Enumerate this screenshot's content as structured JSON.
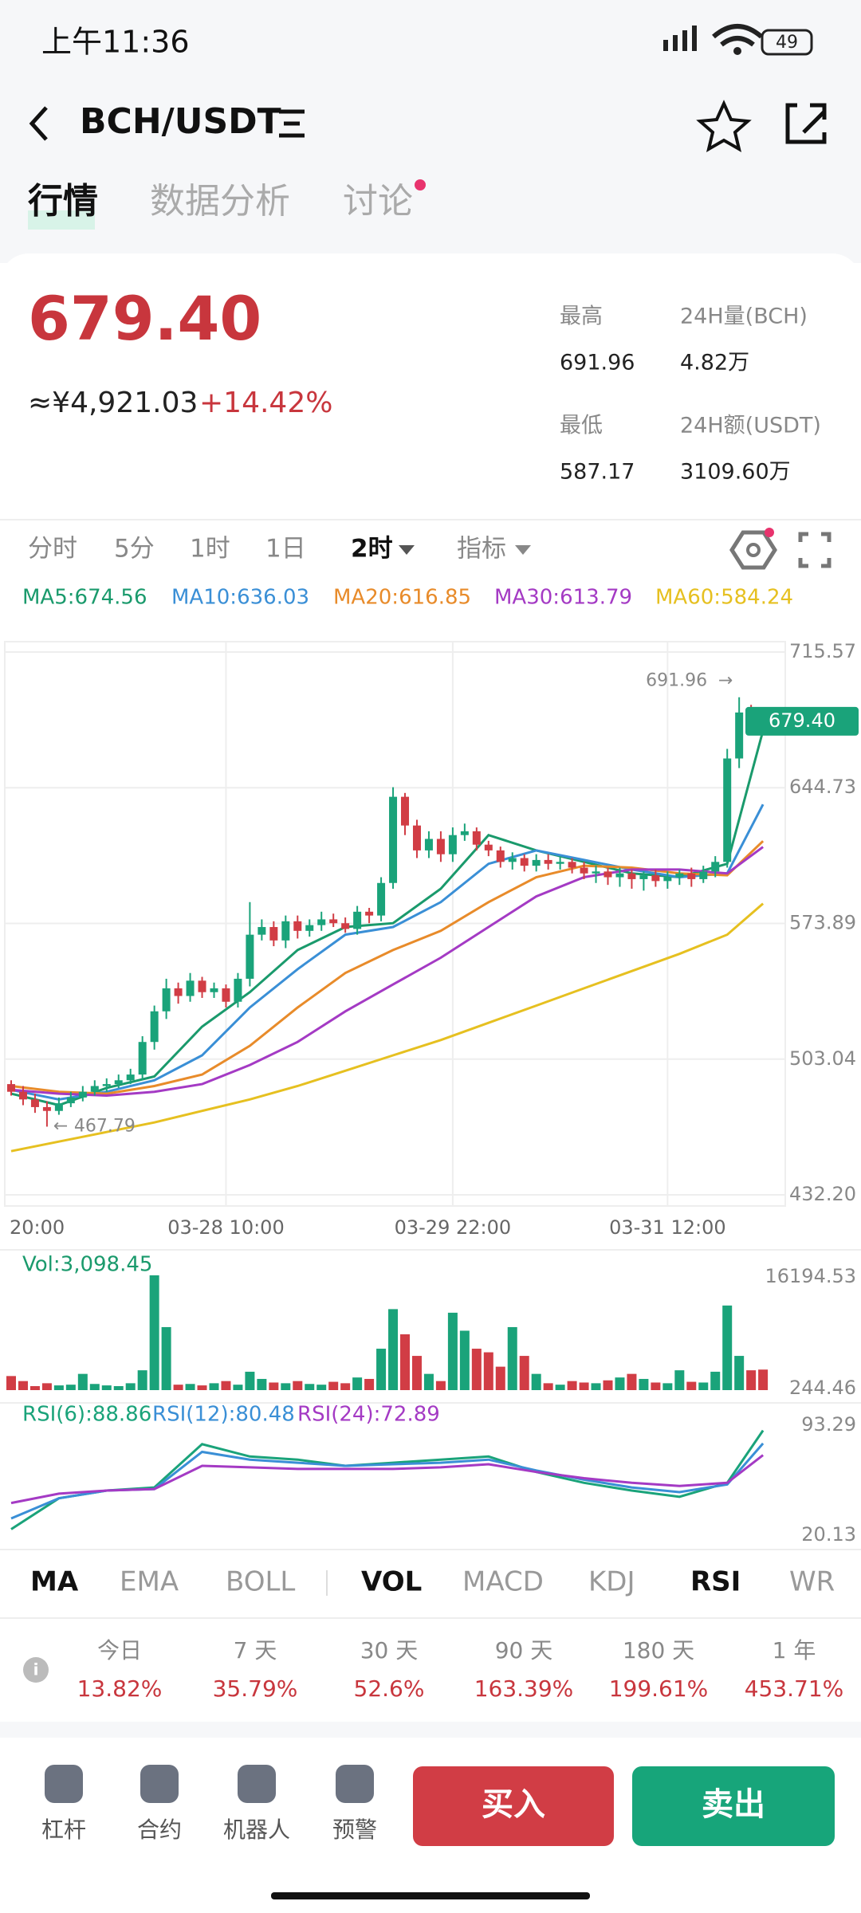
{
  "status_bar": {
    "time": "上午11:36",
    "battery": "49"
  },
  "header": {
    "pair": "BCH/USDT"
  },
  "tabs": [
    "行情",
    "数据分析",
    "讨论"
  ],
  "ticker": {
    "price": "679.40",
    "cny": "≈¥4,921.03",
    "change": "+14.42%",
    "stats": [
      {
        "label": "最高",
        "value": "691.96"
      },
      {
        "label": "24H量(BCH)",
        "value": "4.82万"
      },
      {
        "label": "最低",
        "value": "587.17"
      },
      {
        "label": "24H额(USDT)",
        "value": "3109.60万"
      }
    ]
  },
  "intervals": [
    "分时",
    "5分",
    "1时",
    "1日",
    "2时",
    "指标"
  ],
  "chart_data": [
    {
      "type": "candlestick",
      "up_color": "#1aa37a",
      "down_color": "#d13d45",
      "categories": [
        "20:00",
        null,
        null,
        null,
        null,
        null,
        null,
        null,
        null,
        null,
        null,
        null,
        null,
        null,
        null,
        null,
        null,
        null,
        "03-28 10:00",
        null,
        null,
        null,
        null,
        null,
        null,
        null,
        null,
        null,
        null,
        null,
        null,
        null,
        null,
        null,
        null,
        null,
        null,
        "03-29 22:00",
        null,
        null,
        null,
        null,
        null,
        null,
        null,
        null,
        null,
        null,
        null,
        null,
        null,
        null,
        null,
        null,
        null,
        "03-31 12:00",
        null,
        null,
        null,
        null,
        null,
        null,
        null,
        null
      ],
      "open": [
        490,
        486,
        482,
        478,
        476,
        480,
        483,
        486,
        489,
        490,
        492,
        495,
        512,
        528,
        540,
        536,
        544,
        538,
        540,
        533,
        545,
        568,
        572,
        565,
        575,
        570,
        573,
        576,
        574,
        571,
        580,
        578,
        595,
        640,
        625,
        612,
        618,
        610,
        620,
        622,
        615,
        612,
        606,
        608,
        604,
        607,
        605,
        606,
        603,
        600,
        601,
        598,
        600,
        597,
        599,
        596,
        598,
        600,
        597,
        601,
        606,
        660,
        684,
        680
      ],
      "high": [
        492,
        489,
        485,
        481,
        483,
        486,
        489,
        492,
        493,
        495,
        498,
        515,
        531,
        545,
        543,
        548,
        546,
        543,
        542,
        548,
        585,
        576,
        575,
        578,
        578,
        576,
        580,
        579,
        577,
        583,
        582,
        598,
        645,
        642,
        628,
        622,
        622,
        624,
        626,
        624,
        617,
        614,
        611,
        610,
        610,
        610,
        609,
        608,
        606,
        604,
        603,
        603,
        602,
        601,
        602,
        601,
        602,
        603,
        604,
        609,
        665,
        691.96,
        688,
        684
      ],
      "low": [
        484,
        479,
        475,
        467.79,
        474,
        478,
        481,
        484,
        486,
        488,
        490,
        492,
        508,
        524,
        532,
        533,
        535,
        535,
        530,
        530,
        541,
        565,
        562,
        561,
        566,
        567,
        570,
        572,
        569,
        568,
        574,
        575,
        592,
        620,
        608,
        608,
        606,
        606,
        617,
        612,
        609,
        603,
        602,
        601,
        601,
        602,
        602,
        600,
        597,
        595,
        594,
        593,
        592,
        591,
        593,
        592,
        594,
        593,
        595,
        598,
        603,
        655,
        676,
        676
      ],
      "close": [
        486,
        482,
        478,
        476,
        480,
        483,
        486,
        489,
        490,
        492,
        495,
        512,
        528,
        540,
        536,
        544,
        538,
        540,
        533,
        545,
        568,
        572,
        565,
        575,
        570,
        573,
        576,
        574,
        571,
        580,
        578,
        595,
        640,
        625,
        612,
        618,
        610,
        620,
        622,
        615,
        612,
        606,
        608,
        604,
        607,
        605,
        606,
        603,
        600,
        601,
        598,
        600,
        597,
        599,
        596,
        598,
        600,
        597,
        601,
        606,
        660,
        684,
        680,
        679.4
      ],
      "x": [
        0,
        4,
        8,
        12,
        16,
        20,
        24,
        28,
        32,
        36,
        40,
        44,
        48,
        52,
        56,
        60,
        63
      ],
      "series": [
        {
          "name": "MA5:674.56",
          "color": "#1a9a6c",
          "values": [
            485,
            479,
            488,
            494,
            520,
            538,
            560,
            572,
            574,
            592,
            620,
            612,
            606,
            600,
            598,
            605,
            674.56
          ]
        },
        {
          "name": "MA10:636.03",
          "color": "#3a8fd6",
          "values": [
            487,
            482,
            486,
            492,
            505,
            530,
            550,
            568,
            572,
            585,
            605,
            612,
            607,
            602,
            598,
            600,
            636.03
          ]
        },
        {
          "name": "MA20:616.85",
          "color": "#e88b2a",
          "values": [
            489,
            486,
            485,
            489,
            495,
            510,
            530,
            548,
            560,
            570,
            585,
            598,
            604,
            603,
            600,
            599,
            616.85
          ]
        },
        {
          "name": "MA30:613.79",
          "color": "#a43ac4",
          "values": [
            487,
            485,
            484,
            486,
            490,
            500,
            512,
            528,
            542,
            556,
            572,
            588,
            598,
            602,
            602,
            600,
            613.79
          ]
        },
        {
          "name": "MA60:584.24",
          "color": "#e6c020",
          "values": [
            455,
            460,
            465,
            470,
            476,
            482,
            489,
            497,
            505,
            513,
            522,
            531,
            540,
            549,
            558,
            568,
            584.24
          ]
        }
      ],
      "ylim": [
        432.2,
        715.57
      ],
      "yticks": [
        715.57,
        644.73,
        573.89,
        503.04,
        {
          "value": 432.2,
          "label": "432.20"
        }
      ],
      "price_badge": {
        "value": 679.4,
        "label": "679.40"
      },
      "high_marker": 691.96,
      "low_marker": 467.79,
      "grid": true
    },
    {
      "type": "bar",
      "title": "Vol:3,098.45",
      "values": [
        2200,
        1500,
        800,
        1200,
        900,
        1000,
        2500,
        1100,
        900,
        800,
        1200,
        3000,
        16194,
        9000,
        1000,
        1100,
        900,
        1200,
        1500,
        1000,
        2800,
        1800,
        1300,
        1200,
        1500,
        1100,
        1000,
        1400,
        1200,
        2000,
        1800,
        6000,
        11500,
        8000,
        5000,
        2500,
        1500,
        11000,
        8500,
        6000,
        5500,
        3500,
        9000,
        5000,
        2500,
        1200,
        1000,
        1500,
        1300,
        1200,
        1600,
        2000,
        2500,
        1800,
        1300,
        1200,
        3000,
        1400,
        1300,
        2800,
        12000,
        5000,
        3000,
        3098.45
      ],
      "ylim": [
        244.46,
        16194.53
      ],
      "yticks": [
        16194.53,
        244.46
      ]
    },
    {
      "type": "line",
      "x": [
        0,
        4,
        8,
        12,
        16,
        20,
        24,
        28,
        32,
        36,
        40,
        44,
        48,
        52,
        56,
        60,
        63
      ],
      "series": [
        {
          "name": "RSI(6):88.86",
          "color": "#1aa37a",
          "values": [
            25,
            45,
            50,
            52,
            80,
            72,
            70,
            66,
            68,
            70,
            72,
            62,
            55,
            50,
            46,
            55,
            88.86
          ]
        },
        {
          "name": "RSI(12):80.48",
          "color": "#3a8fd6",
          "values": [
            32,
            45,
            50,
            51,
            75,
            70,
            68,
            66,
            67,
            68,
            70,
            63,
            57,
            52,
            49,
            54,
            80.48
          ]
        },
        {
          "name": "RSI(24):72.89",
          "color": "#a43ac4",
          "values": [
            42,
            48,
            50,
            51,
            66,
            65,
            64,
            64,
            64,
            65,
            67,
            62,
            58,
            55,
            53,
            55,
            72.89
          ]
        }
      ],
      "ylim": [
        20.13,
        93.29
      ],
      "yticks": [
        93.29,
        20.13
      ]
    }
  ],
  "indicator_tabs": [
    "MA",
    "EMA",
    "BOLL",
    "VOL",
    "MACD",
    "KDJ",
    "RSI",
    "WR"
  ],
  "performance": [
    {
      "label": "今日",
      "value": "13.82%"
    },
    {
      "label": "7 天",
      "value": "35.79%"
    },
    {
      "label": "30 天",
      "value": "52.6%"
    },
    {
      "label": "90 天",
      "value": "163.39%"
    },
    {
      "label": "180 天",
      "value": "199.61%"
    },
    {
      "label": "1 年",
      "value": "453.71%"
    }
  ],
  "actions": [
    "杠杆",
    "合约",
    "机器人",
    "预警"
  ],
  "buy": "买入",
  "sell": "卖出"
}
